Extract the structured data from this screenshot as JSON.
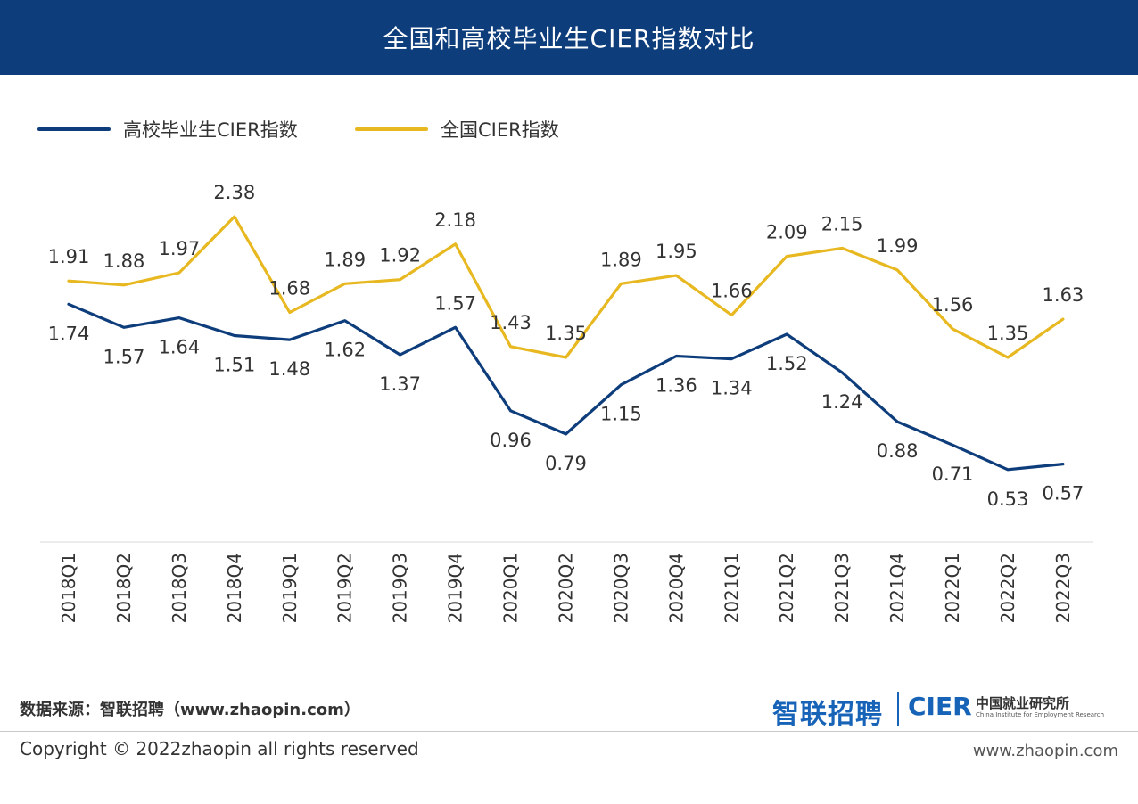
{
  "header": {
    "title": "全国和高校毕业生CIER指数对比"
  },
  "colors": {
    "header_bg": "#0e3d7c",
    "graduate_series": "#0e3d7c",
    "national_series": "#e8b820",
    "brand": "#1763b8"
  },
  "chart_data": {
    "type": "line",
    "title": "全国和高校毕业生CIER指数对比",
    "xlabel": "",
    "ylabel": "",
    "categories": [
      "2018Q1",
      "2018Q2",
      "2018Q3",
      "2018Q4",
      "2019Q1",
      "2019Q2",
      "2019Q3",
      "2019Q4",
      "2020Q1",
      "2020Q2",
      "2020Q3",
      "2020Q4",
      "2021Q1",
      "2021Q2",
      "2021Q3",
      "2021Q4",
      "2022Q1",
      "2022Q2",
      "2022Q3"
    ],
    "series": [
      {
        "name": "高校毕业生CIER指数",
        "color": "#0e3d7c",
        "values": [
          1.74,
          1.57,
          1.64,
          1.51,
          1.48,
          1.62,
          1.37,
          1.57,
          0.96,
          0.79,
          1.15,
          1.36,
          1.34,
          1.52,
          1.24,
          0.88,
          0.71,
          0.53,
          0.57
        ]
      },
      {
        "name": "全国CIER指数",
        "color": "#e8b820",
        "values": [
          1.91,
          1.88,
          1.97,
          2.38,
          1.68,
          1.89,
          1.92,
          2.18,
          1.43,
          1.35,
          1.89,
          1.95,
          1.66,
          2.09,
          2.15,
          1.99,
          1.56,
          1.35,
          1.63
        ]
      }
    ],
    "legend_position": "top-left",
    "grid": false,
    "axis_visible": false
  },
  "footer": {
    "source": "数据来源：智联招聘（www.zhaopin.com）",
    "brand_logo": "智联招聘",
    "brand_cier": "CIER",
    "brand_cn": "中国就业研究所",
    "brand_en": "China Institute for Employment Research",
    "copyright": "Copyright ©  2022zhaopin all rights reserved",
    "website": "www.zhaopin.com"
  }
}
